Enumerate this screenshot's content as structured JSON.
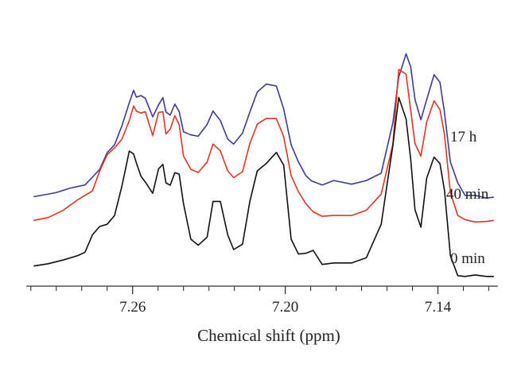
{
  "chart_data": {
    "type": "line",
    "title": "",
    "xlabel": "Chemical shift (ppm)",
    "ylabel": "",
    "x_reversed": true,
    "xlim": [
      7.3018,
      7.1164
    ],
    "ylim": [
      0,
      1
    ],
    "x_ticks": [
      {
        "value": 7.26,
        "label": "7.26"
      },
      {
        "value": 7.2,
        "label": "7.20"
      },
      {
        "value": 7.14,
        "label": "7.14"
      }
    ],
    "grid": false,
    "legend": "inline-right",
    "series": [
      {
        "name": "17 h",
        "color": "#3b3b9a",
        "x": [
          7.2989,
          7.2903,
          7.2845,
          7.2787,
          7.2729,
          7.27,
          7.2671,
          7.2642,
          7.2613,
          7.2596,
          7.2585,
          7.2567,
          7.255,
          7.2521,
          7.2498,
          7.2481,
          7.2469,
          7.2452,
          7.2434,
          7.2417,
          7.24,
          7.2371,
          7.2342,
          7.2307,
          7.2284,
          7.2255,
          7.2226,
          7.2203,
          7.2168,
          7.2139,
          7.211,
          7.2075,
          7.2035,
          7.2006,
          7.1977,
          7.1948,
          7.1919,
          7.1896,
          7.1855,
          7.1809,
          7.1739,
          7.1681,
          7.1623,
          7.1577,
          7.1554,
          7.1525,
          7.1507,
          7.149,
          7.1467,
          7.1444,
          7.1415,
          7.1392,
          7.1374,
          7.1351,
          7.1322,
          7.1293,
          7.1254,
          7.1208,
          7.118
        ],
        "y": [
          0.337,
          0.352,
          0.37,
          0.382,
          0.442,
          0.506,
          0.536,
          0.609,
          0.697,
          0.745,
          0.719,
          0.725,
          0.714,
          0.643,
          0.689,
          0.717,
          0.662,
          0.65,
          0.692,
          0.664,
          0.586,
          0.574,
          0.569,
          0.614,
          0.666,
          0.629,
          0.558,
          0.539,
          0.581,
          0.662,
          0.738,
          0.769,
          0.762,
          0.673,
          0.536,
          0.47,
          0.418,
          0.397,
          0.382,
          0.399,
          0.385,
          0.399,
          0.427,
          0.621,
          0.796,
          0.885,
          0.835,
          0.71,
          0.632,
          0.709,
          0.805,
          0.776,
          0.659,
          0.47,
          0.39,
          0.342,
          0.342,
          0.332,
          0.335
        ]
      },
      {
        "name": "40 min",
        "color": "#e8331f",
        "x": [
          7.2989,
          7.2932,
          7.2874,
          7.2816,
          7.2758,
          7.2729,
          7.27,
          7.2671,
          7.2642,
          7.2613,
          7.2596,
          7.2585,
          7.2567,
          7.255,
          7.2521,
          7.2498,
          7.2481,
          7.2469,
          7.2452,
          7.2434,
          7.2417,
          7.24,
          7.2371,
          7.2342,
          7.2307,
          7.2284,
          7.2255,
          7.2226,
          7.2203,
          7.2168,
          7.2139,
          7.211,
          7.2075,
          7.2035,
          7.2006,
          7.1977,
          7.1948,
          7.1919,
          7.189,
          7.1855,
          7.1809,
          7.1739,
          7.1681,
          7.1623,
          7.1577,
          7.1554,
          7.1525,
          7.1507,
          7.149,
          7.1467,
          7.1444,
          7.1415,
          7.1392,
          7.1374,
          7.1351,
          7.1322,
          7.1293,
          7.1254,
          7.1208,
          7.118
        ],
        "y": [
          0.246,
          0.257,
          0.284,
          0.325,
          0.359,
          0.436,
          0.498,
          0.524,
          0.558,
          0.628,
          0.685,
          0.665,
          0.658,
          0.663,
          0.571,
          0.66,
          0.663,
          0.578,
          0.596,
          0.648,
          0.614,
          0.493,
          0.442,
          0.43,
          0.47,
          0.539,
          0.513,
          0.436,
          0.41,
          0.433,
          0.541,
          0.615,
          0.637,
          0.637,
          0.567,
          0.418,
          0.356,
          0.31,
          0.279,
          0.262,
          0.265,
          0.265,
          0.285,
          0.347,
          0.538,
          0.825,
          0.807,
          0.669,
          0.541,
          0.493,
          0.623,
          0.705,
          0.671,
          0.575,
          0.353,
          0.265,
          0.249,
          0.24,
          0.242,
          0.246
        ]
      },
      {
        "name": "0 min",
        "color": "#111111",
        "x": [
          7.2989,
          7.2932,
          7.2874,
          7.2816,
          7.2787,
          7.2758,
          7.2729,
          7.27,
          7.2671,
          7.2642,
          7.2613,
          7.2596,
          7.2585,
          7.2567,
          7.255,
          7.2521,
          7.2498,
          7.2481,
          7.2469,
          7.2452,
          7.2434,
          7.2417,
          7.24,
          7.2371,
          7.2342,
          7.2307,
          7.2284,
          7.2255,
          7.2226,
          7.2203,
          7.2168,
          7.2139,
          7.211,
          7.2075,
          7.2035,
          7.2006,
          7.1977,
          7.1948,
          7.1919,
          7.189,
          7.1855,
          7.1809,
          7.1739,
          7.1681,
          7.1623,
          7.1577,
          7.1554,
          7.1525,
          7.1507,
          7.149,
          7.1467,
          7.1444,
          7.1415,
          7.1392,
          7.1374,
          7.1351,
          7.1322,
          7.1293,
          7.1254,
          7.1208,
          7.118
        ],
        "y": [
          0.071,
          0.08,
          0.094,
          0.111,
          0.124,
          0.191,
          0.223,
          0.231,
          0.265,
          0.378,
          0.512,
          0.501,
          0.466,
          0.415,
          0.393,
          0.35,
          0.444,
          0.461,
          0.39,
          0.381,
          0.429,
          0.424,
          0.31,
          0.174,
          0.151,
          0.182,
          0.319,
          0.319,
          0.191,
          0.134,
          0.155,
          0.319,
          0.436,
          0.464,
          0.507,
          0.458,
          0.174,
          0.117,
          0.12,
          0.131,
          0.077,
          0.083,
          0.083,
          0.103,
          0.231,
          0.534,
          0.718,
          0.635,
          0.481,
          0.287,
          0.22,
          0.408,
          0.489,
          0.464,
          0.361,
          0.111,
          0.034,
          0.031,
          0.037,
          0.031,
          0.031
        ]
      }
    ]
  }
}
